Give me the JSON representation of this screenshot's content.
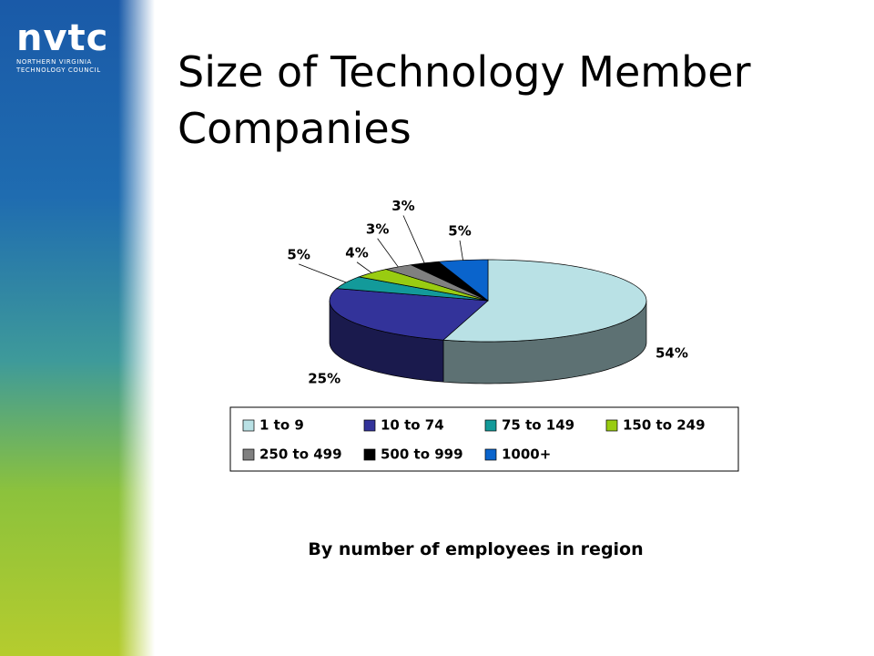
{
  "logo": {
    "name": "nvtc",
    "line1": "NORTHERN VIRGINIA",
    "line2": "TECHNOLOGY COUNCIL"
  },
  "chart_data": {
    "type": "pie3d",
    "title": "Size of Technology Member Companies",
    "subtitle": "By number of employees in region",
    "categories": [
      "1 to 9",
      "10 to 74",
      "75 to 149",
      "150 to 249",
      "250 to 499",
      "500 to 999",
      "1000+"
    ],
    "values": [
      54,
      25,
      5,
      4,
      3,
      3,
      5
    ],
    "value_labels": [
      "54%",
      "25%",
      "5%",
      "4%",
      "3%",
      "3%",
      "5%"
    ],
    "colors": [
      "#b9e1e5",
      "#33339a",
      "#139a9a",
      "#99cc11",
      "#808080",
      "#000000",
      "#0a64cc"
    ],
    "legend": "bottom"
  }
}
